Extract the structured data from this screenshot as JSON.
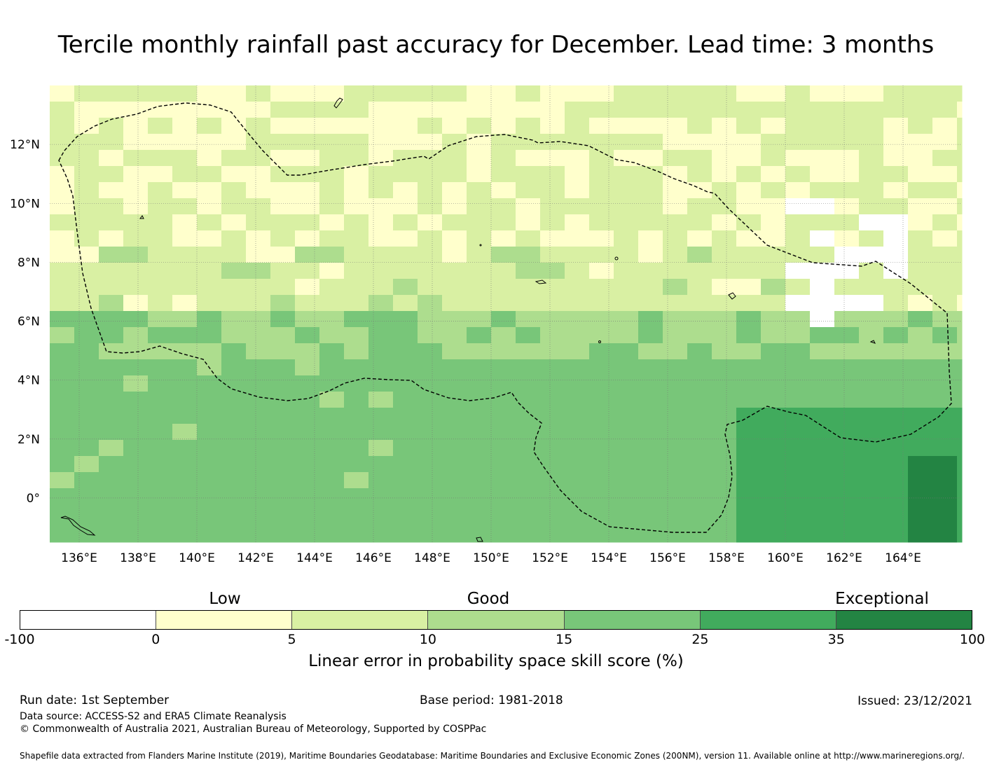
{
  "title": "Tercile monthly rainfall past accuracy for December. Lead time: 3 months",
  "map": {
    "lon_range": [
      135,
      166
    ],
    "lat_range": [
      -1.5,
      14
    ],
    "x_tick_labels": [
      "136°E",
      "138°E",
      "140°E",
      "142°E",
      "144°E",
      "146°E",
      "148°E",
      "150°E",
      "152°E",
      "154°E",
      "156°E",
      "158°E",
      "160°E",
      "162°E",
      "164°E"
    ],
    "y_tick_labels": [
      "12°N",
      "10°N",
      "8°N",
      "6°N",
      "4°N",
      "2°N",
      "0°"
    ],
    "grid": true,
    "boundary_line": "dashed"
  },
  "colorbar": {
    "categories": [
      {
        "label": "Low",
        "position_value": "0"
      },
      {
        "label": "Good",
        "position_value": "10"
      },
      {
        "label": "Exceptional",
        "position_value": "35"
      }
    ],
    "bins": [
      {
        "from": "-100",
        "to": "0",
        "color": "#ffffff"
      },
      {
        "from": "0",
        "to": "5",
        "color": "#ffffcc"
      },
      {
        "from": "5",
        "to": "10",
        "color": "#d9f0a3"
      },
      {
        "from": "10",
        "to": "15",
        "color": "#addd8e"
      },
      {
        "from": "15",
        "to": "25",
        "color": "#78c679"
      },
      {
        "from": "25",
        "to": "35",
        "color": "#41ab5d"
      },
      {
        "from": "35",
        "to": "100",
        "color": "#238443"
      }
    ],
    "tick_labels": [
      "-100",
      "0",
      "5",
      "10",
      "15",
      "25",
      "35",
      "100"
    ],
    "title": "Linear error in probability space skill score (%)"
  },
  "footer": {
    "run_date": "Run date: 1st September",
    "base_period": "Base period: 1981-2018",
    "issued": "Issued: 23/12/2021",
    "data_source": "Data source: ACCESS-S2 and ERA5 Climate Reanalysis",
    "copyright": "© Commonwealth of Australia 2021, Australian Bureau of Meteorology, Supported by COSPPac",
    "shapefile": "Shapefile data extracted from Flanders Marine Institute (2019), Maritime Boundaries Geodatabase: Maritime Boundaries and Exclusive Economic Zones (200NM), version 11. Available online at http://www.marineregions.org/."
  }
}
